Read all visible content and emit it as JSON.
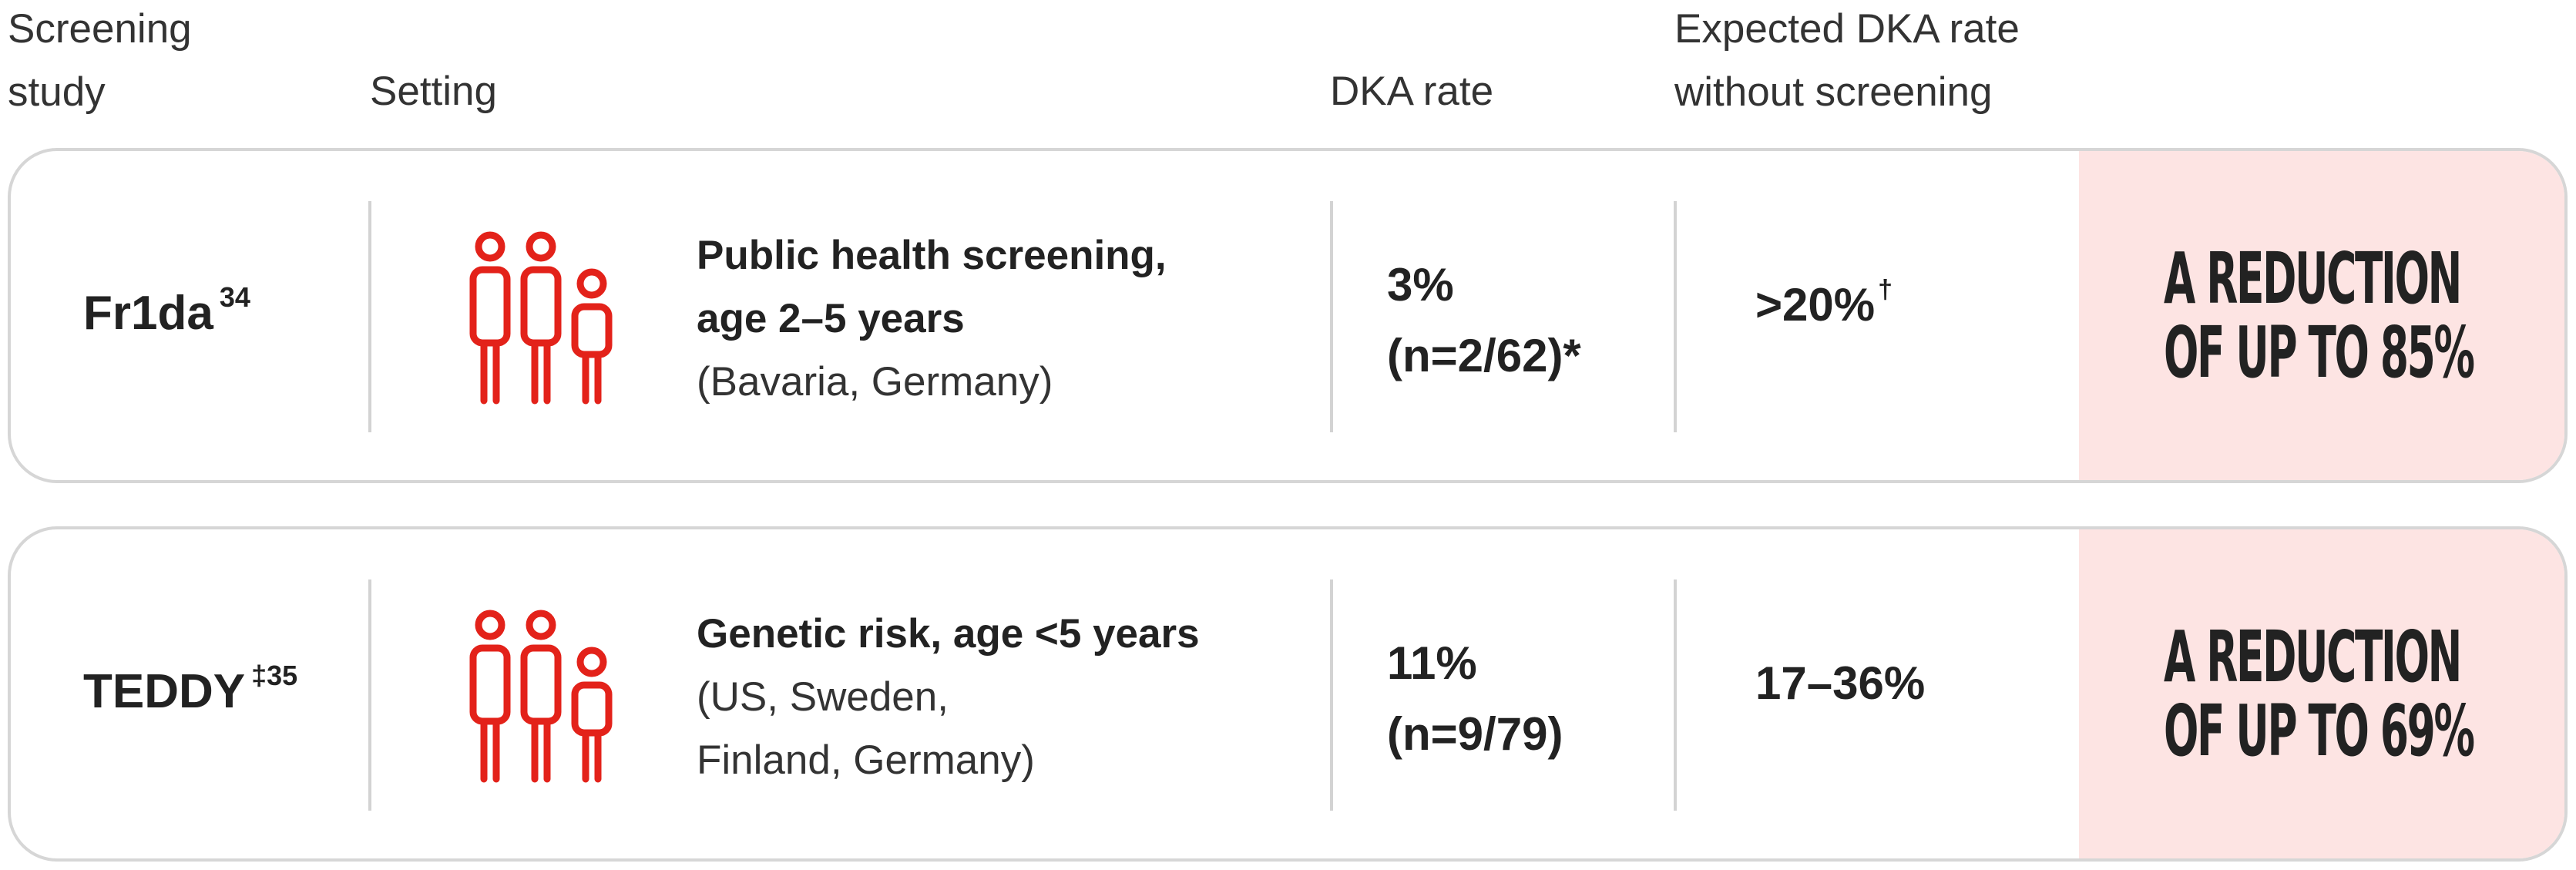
{
  "header": {
    "study_line1": "Screening",
    "study_line2": "study",
    "setting": "Setting",
    "dka_rate": "DKA rate",
    "expected_line1": "Expected DKA rate",
    "expected_line2": "without screening"
  },
  "rows": [
    {
      "study": "Fr1da",
      "study_sup": "34",
      "icon": "family-icon",
      "setting_bold_1": "Public health screening,",
      "setting_bold_2": "age 2–5 years",
      "setting_normal_1": "(Bavaria, Germany)",
      "setting_normal_2": "",
      "dka_line1": "3%",
      "dka_line2": "(n=2/62)*",
      "expected": ">20%",
      "expected_sup": "†",
      "reduction_line1": "A REDUCTION",
      "reduction_line2": "OF UP TO 85%"
    },
    {
      "study": "TEDDY",
      "study_sup": "‡35",
      "icon": "family-icon",
      "setting_bold_1": "Genetic risk, age <5 years",
      "setting_bold_2": "",
      "setting_normal_1": "(US, Sweden,",
      "setting_normal_2": "Finland, Germany)",
      "dka_line1": "11%",
      "dka_line2": "(n=9/79)",
      "expected": "17–36%",
      "expected_sup": "",
      "reduction_line1": "A REDUCTION",
      "reduction_line2": "OF UP TO 69%"
    }
  ],
  "colors": {
    "icon": "#e3221a",
    "highlight": "#fde4e3",
    "border": "#d6d6d6"
  }
}
